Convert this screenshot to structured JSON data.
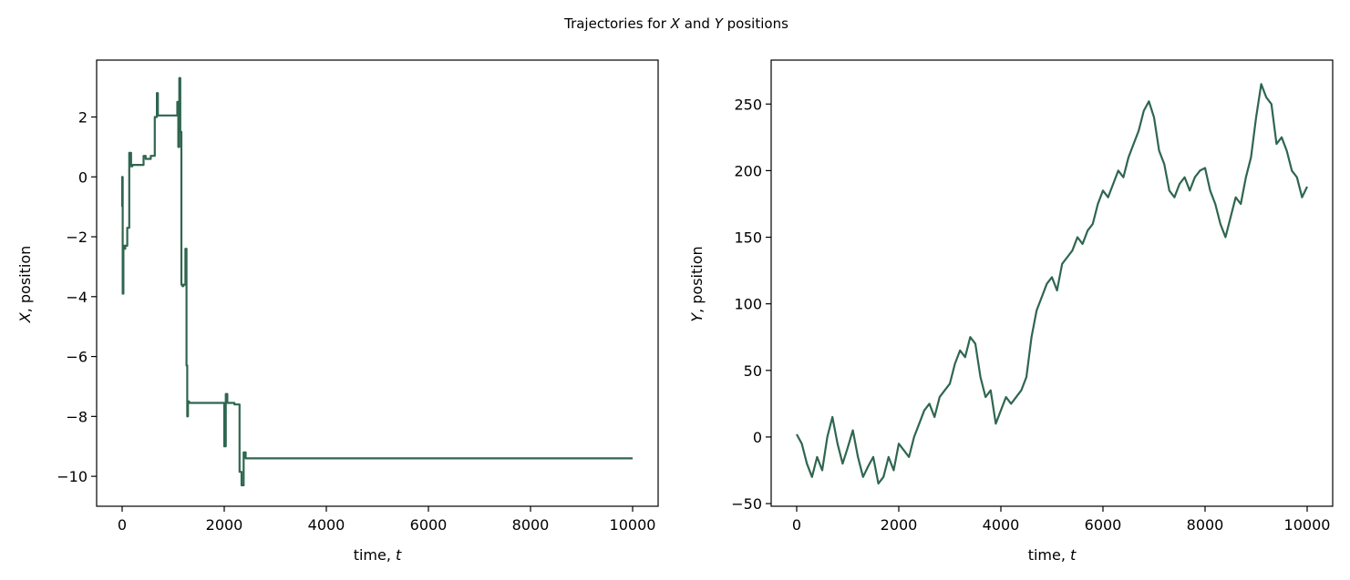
{
  "figure": {
    "suptitle_parts": [
      "Trajectories for ",
      "X",
      " and ",
      "Y",
      " positions"
    ]
  },
  "chart_data": [
    {
      "type": "line",
      "xlabel_parts": [
        "time, ",
        "t"
      ],
      "ylabel_parts": [
        "X",
        ", position"
      ],
      "xlim": [
        -500,
        10500
      ],
      "ylim": [
        -11,
        3.9
      ],
      "xticks": [
        0,
        2000,
        4000,
        6000,
        8000,
        10000
      ],
      "xtick_labels": [
        "0",
        "2000",
        "4000",
        "6000",
        "8000",
        "10000"
      ],
      "yticks": [
        2,
        0,
        -2,
        -4,
        -6,
        -8,
        -10
      ],
      "ytick_labels": [
        "2",
        "0",
        "−2",
        "−4",
        "−6",
        "−8",
        "−10"
      ],
      "color": "#2f6650",
      "series": [
        {
          "x": [
            0,
            0,
            10,
            10,
            25,
            25,
            45,
            45,
            60,
            60,
            100,
            100,
            140,
            140,
            175,
            175,
            200,
            200,
            420,
            420,
            460,
            460,
            560,
            560,
            640,
            640,
            680,
            680,
            700,
            700,
            740,
            740,
            1080,
            1080,
            1100,
            1100,
            1120,
            1120,
            1140,
            1140,
            1160,
            1160,
            1180,
            1180,
            1200,
            1200,
            1240,
            1240,
            1260,
            1260,
            1275,
            1275,
            1290,
            1290,
            1310,
            1310,
            2000,
            2000,
            2030,
            2030,
            2060,
            2060,
            2090,
            2090,
            2200,
            2200,
            2300,
            2300,
            2340,
            2340,
            2380,
            2380,
            2420,
            2420,
            10000
          ],
          "y": [
            -1.0,
            0.0,
            0.0,
            -3.9,
            -3.9,
            -2.3,
            -2.3,
            -2.4,
            -2.4,
            -2.3,
            -2.3,
            -1.7,
            -1.7,
            0.8,
            0.8,
            0.35,
            0.35,
            0.4,
            0.4,
            0.7,
            0.7,
            0.6,
            0.6,
            0.7,
            0.7,
            2.0,
            2.0,
            2.8,
            2.8,
            2.05,
            2.05,
            2.05,
            2.05,
            2.5,
            2.5,
            1.0,
            1.0,
            3.3,
            3.3,
            1.5,
            1.5,
            -3.6,
            -3.6,
            -3.65,
            -3.65,
            -3.6,
            -3.6,
            -2.4,
            -2.4,
            -6.3,
            -6.3,
            -8.0,
            -8.0,
            -7.5,
            -7.5,
            -7.55,
            -7.55,
            -9.0,
            -9.0,
            -7.25,
            -7.25,
            -7.55,
            -7.55,
            -7.55,
            -7.55,
            -7.6,
            -7.6,
            -9.85,
            -9.85,
            -10.3,
            -10.3,
            -9.2,
            -9.2,
            -9.4,
            -9.4
          ]
        }
      ]
    },
    {
      "type": "line",
      "xlabel_parts": [
        "time, ",
        "t"
      ],
      "ylabel_parts": [
        "Y",
        ", position"
      ],
      "xlim": [
        -500,
        10500
      ],
      "ylim": [
        -52,
        283
      ],
      "xticks": [
        0,
        2000,
        4000,
        6000,
        8000,
        10000
      ],
      "xtick_labels": [
        "0",
        "2000",
        "4000",
        "6000",
        "8000",
        "10000"
      ],
      "yticks": [
        250,
        200,
        150,
        100,
        50,
        0,
        -50
      ],
      "ytick_labels": [
        "250",
        "200",
        "150",
        "100",
        "50",
        "0",
        "−50"
      ],
      "color": "#2f6650",
      "series": [
        {
          "x": [
            0,
            100,
            200,
            300,
            400,
            500,
            600,
            700,
            800,
            900,
            1000,
            1100,
            1200,
            1300,
            1400,
            1500,
            1600,
            1700,
            1800,
            1900,
            2000,
            2100,
            2200,
            2300,
            2400,
            2500,
            2600,
            2700,
            2800,
            2900,
            3000,
            3100,
            3200,
            3300,
            3400,
            3500,
            3600,
            3700,
            3800,
            3900,
            4000,
            4100,
            4200,
            4300,
            4400,
            4500,
            4600,
            4700,
            4800,
            4900,
            5000,
            5100,
            5200,
            5300,
            5400,
            5500,
            5600,
            5700,
            5800,
            5900,
            6000,
            6100,
            6200,
            6300,
            6400,
            6500,
            6600,
            6700,
            6800,
            6900,
            7000,
            7100,
            7200,
            7300,
            7400,
            7500,
            7600,
            7700,
            7800,
            7900,
            8000,
            8100,
            8200,
            8300,
            8400,
            8500,
            8600,
            8700,
            8800,
            8900,
            9000,
            9100,
            9200,
            9300,
            9400,
            9500,
            9600,
            9700,
            9800,
            9900,
            10000
          ],
          "y": [
            2,
            -5,
            -20,
            -30,
            -15,
            -25,
            0,
            15,
            -5,
            -20,
            -8,
            5,
            -15,
            -30,
            -22,
            -15,
            -35,
            -30,
            -15,
            -25,
            -5,
            -10,
            -15,
            0,
            10,
            20,
            25,
            15,
            30,
            35,
            40,
            55,
            65,
            60,
            75,
            70,
            45,
            30,
            35,
            10,
            20,
            30,
            25,
            30,
            35,
            45,
            75,
            95,
            105,
            115,
            120,
            110,
            130,
            135,
            140,
            150,
            145,
            155,
            160,
            175,
            185,
            180,
            190,
            200,
            195,
            210,
            220,
            230,
            245,
            252,
            240,
            215,
            205,
            185,
            180,
            190,
            195,
            185,
            195,
            200,
            202,
            185,
            175,
            160,
            150,
            165,
            180,
            175,
            195,
            210,
            240,
            265,
            255,
            250,
            220,
            225,
            215,
            200,
            195,
            180,
            188
          ]
        }
      ]
    }
  ]
}
